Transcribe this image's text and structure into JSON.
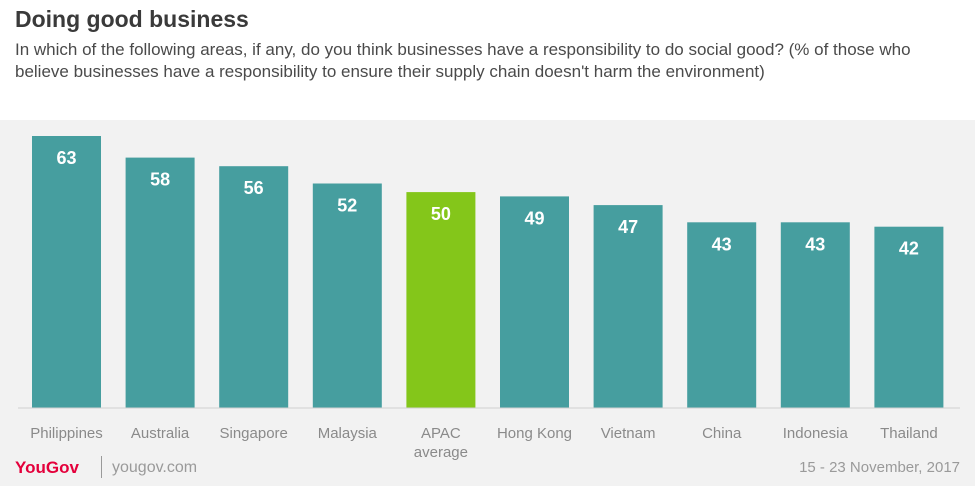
{
  "header": {
    "title": "Doing good business",
    "subtitle": "In which of the following areas, if any, do you think businesses have a responsibility to do social good? (% of those who believe businesses have a responsibility to ensure their supply chain doesn't harm the environment)"
  },
  "footer": {
    "logo": "YouGov",
    "site": "yougov.com",
    "date": "15 - 23 November, 2017"
  },
  "colors": {
    "bar": "#469e9f",
    "highlight": "#84c61a"
  },
  "chart_data": {
    "type": "bar",
    "categories": [
      "Philippines",
      "Australia",
      "Singapore",
      "Malaysia",
      "APAC average",
      "Hong Kong",
      "Vietnam",
      "China",
      "Indonesia",
      "Thailand"
    ],
    "values": [
      63,
      58,
      56,
      52,
      50,
      49,
      47,
      43,
      43,
      42
    ],
    "highlight_category": "APAC average",
    "ylim": [
      0,
      63
    ],
    "grid": false,
    "legend": "none"
  }
}
